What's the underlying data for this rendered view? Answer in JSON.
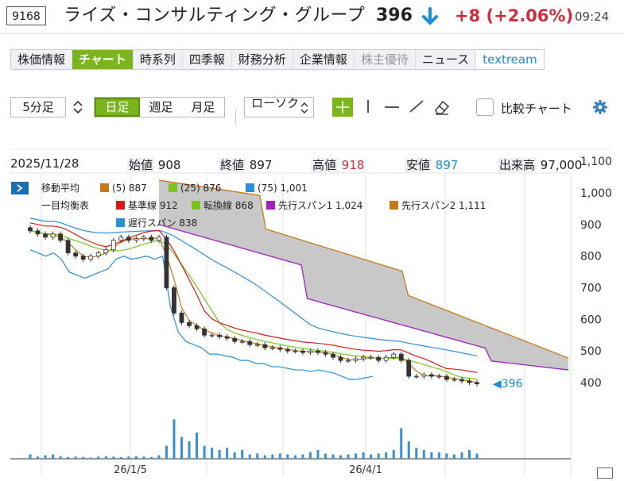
{
  "header": {
    "code": "9168",
    "company": "ライズ・コンサルティング・グループ",
    "price": "396",
    "change": "+8 (+2.06%)",
    "time": "09:24"
  },
  "tabs": [
    {
      "label": "株価情報"
    },
    {
      "label": "チャート"
    },
    {
      "label": "時系列"
    },
    {
      "label": "四季報"
    },
    {
      "label": "財務分析"
    },
    {
      "label": "企業情報"
    },
    {
      "label": "株主優待"
    },
    {
      "label": "ニュース"
    },
    {
      "label": "textream"
    }
  ],
  "controls": {
    "period": "5分足",
    "range": [
      "日足",
      "週足",
      "月足"
    ],
    "chart_type": "ローソク",
    "compare_label": "比較チャート"
  },
  "ohlc": {
    "date": "2025/11/28",
    "open_label": "始値",
    "open": "908",
    "close_label": "終値",
    "close": "897",
    "high_label": "高値",
    "high": "918",
    "low_label": "安値",
    "low": "897",
    "volume_label": "出来高",
    "volume": "97,000"
  },
  "legend": {
    "ma_title": "移動平均",
    "ma5": "(5) 887",
    "ma25": "(25) 876",
    "ma75": "(75) 1,001",
    "ichimoku_title": "一目均衡表",
    "kijun": "基準線 912",
    "tenkan": "転換線 868",
    "span1": "先行スパン1 1,024",
    "span2": "先行スパン2 1,111",
    "chikou": "遅行スパン 838"
  },
  "colors": {
    "accent": "#7ab51d",
    "up": "#d22d3d",
    "down": "#1a8fd8",
    "ma5": "#c87a1a",
    "ma25": "#7ac51d",
    "ma75": "#2b8fd8",
    "kijun": "#d21d1d",
    "tenkan": "#7ac51d",
    "span1": "#a020c0",
    "span2": "#c87a1a",
    "chikou": "#2b8fd8"
  },
  "chart_data": {
    "type": "line",
    "y_ticks": [
      "1,100",
      "1,000",
      "900",
      "800",
      "700",
      "600",
      "500",
      "400"
    ],
    "x_ticks": [
      "26/1/5",
      "26/4/1"
    ],
    "last_price_label": "396",
    "ylim": [
      360,
      1100
    ],
    "close": [
      880,
      870,
      860,
      870,
      850,
      810,
      800,
      790,
      800,
      810,
      820,
      850,
      860,
      850,
      855,
      860,
      850,
      860,
      700,
      620,
      590,
      580,
      570,
      550,
      550,
      545,
      540,
      530,
      530,
      520,
      520,
      510,
      510,
      505,
      500,
      500,
      495,
      500,
      495,
      490,
      480,
      470,
      470,
      475,
      480,
      480,
      470,
      480,
      490,
      470,
      420,
      420,
      425,
      420,
      420,
      410,
      410,
      405,
      400,
      396
    ],
    "volume": [
      0.1,
      0.05,
      0.08,
      0.1,
      0.06,
      0.04,
      0.05,
      0.04,
      0.03,
      0.05,
      0.06,
      0.05,
      0.04,
      0.05,
      0.06,
      0.05,
      0.04,
      0.08,
      0.3,
      0.9,
      0.5,
      0.4,
      0.6,
      0.3,
      0.25,
      0.2,
      0.25,
      0.15,
      0.2,
      0.1,
      0.12,
      0.08,
      0.1,
      0.12,
      0.1,
      0.08,
      0.1,
      0.15,
      0.2,
      0.12,
      0.1,
      0.08,
      0.1,
      0.12,
      0.15,
      0.1,
      0.12,
      0.15,
      0.2,
      0.7,
      0.4,
      0.25,
      0.2,
      0.15,
      0.15,
      0.12,
      0.1,
      0.15,
      0.2,
      0.12
    ]
  }
}
